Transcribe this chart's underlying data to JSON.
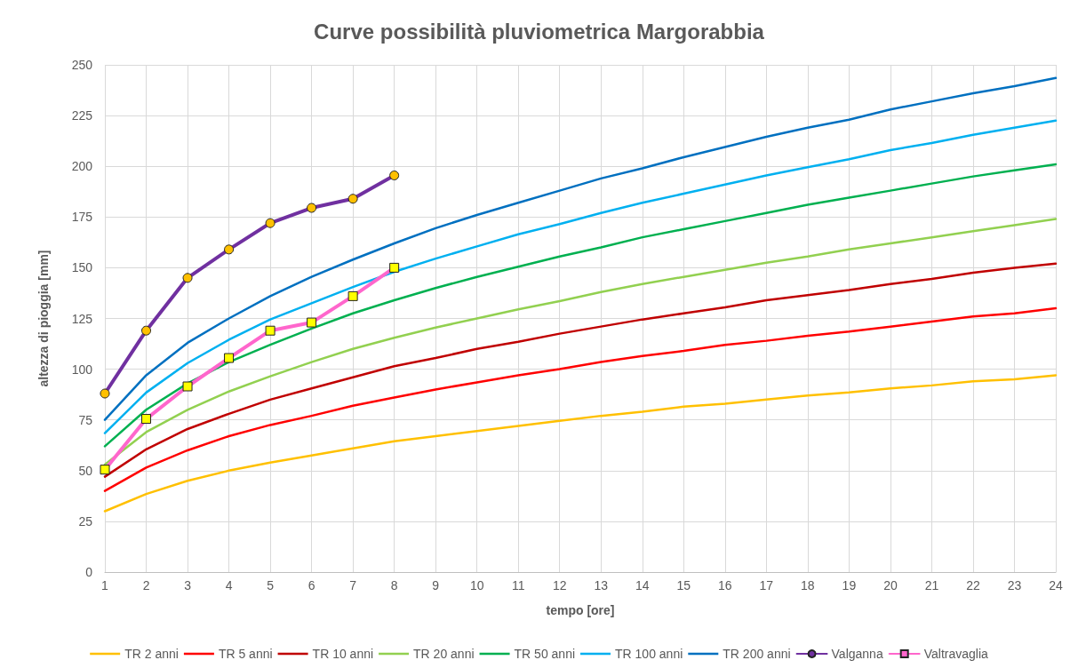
{
  "chart_data": {
    "type": "line",
    "title": "Curve possibilità pluviometrica Margorabbia",
    "xlabel": "tempo [ore]",
    "ylabel": "altezza di pioggia [mm]",
    "x": [
      1,
      2,
      3,
      4,
      5,
      6,
      7,
      8,
      9,
      10,
      11,
      12,
      13,
      14,
      15,
      16,
      17,
      18,
      19,
      20,
      21,
      22,
      23,
      24
    ],
    "xlim": [
      1,
      24
    ],
    "xticks": [
      1,
      2,
      3,
      4,
      5,
      6,
      7,
      8,
      9,
      10,
      11,
      12,
      13,
      14,
      15,
      16,
      17,
      18,
      19,
      20,
      21,
      22,
      23,
      24
    ],
    "ylim": [
      0,
      250
    ],
    "yticks": [
      0,
      25,
      50,
      75,
      100,
      125,
      150,
      175,
      200,
      225,
      250
    ],
    "grid": true,
    "legend": "bottom",
    "marker": "none",
    "line_style": "solid",
    "series": [
      {
        "name": "TR 2 anni",
        "color": "#ffc000",
        "values": [
          30,
          38.5,
          45,
          50,
          54,
          57.5,
          61,
          64.5,
          67,
          69.5,
          72,
          74.5,
          77,
          79,
          81.5,
          83,
          85,
          87,
          88.5,
          90.5,
          92,
          94,
          95,
          97
        ]
      },
      {
        "name": "TR 5 anni",
        "color": "#ff0000",
        "values": [
          40,
          51.5,
          60,
          67,
          72.5,
          77,
          82,
          86,
          90,
          93.5,
          97,
          100,
          103.5,
          106.5,
          109,
          112,
          114,
          116.5,
          118.5,
          121,
          123.5,
          126,
          127.5,
          130
        ]
      },
      {
        "name": "TR 10 anni",
        "color": "#c00000",
        "values": [
          47,
          60.5,
          70.5,
          78,
          85,
          90.5,
          96,
          101.5,
          105.5,
          110,
          113.5,
          117.5,
          121,
          124.5,
          127.5,
          130.5,
          134,
          136.5,
          139,
          142,
          144.5,
          147.5,
          150,
          152
        ]
      },
      {
        "name": "TR 20 anni",
        "color": "#92d050",
        "values": [
          53,
          69,
          80,
          89,
          96.5,
          103.5,
          110,
          115.5,
          120.5,
          125,
          129.5,
          133.5,
          138,
          142,
          145.5,
          149,
          152.5,
          155.5,
          159,
          162,
          165,
          168,
          171,
          174
        ]
      },
      {
        "name": "TR 50 anni",
        "color": "#00b050",
        "values": [
          62,
          80,
          93,
          103.5,
          112,
          120,
          127.5,
          134,
          140,
          145.5,
          150.5,
          155.5,
          160,
          165,
          169,
          173,
          177,
          181,
          184.5,
          188,
          191.5,
          195,
          198,
          201
        ]
      },
      {
        "name": "TR 100 anni",
        "color": "#00b0f0",
        "values": [
          68.5,
          88.5,
          103,
          114.5,
          124.5,
          132.5,
          140.5,
          148,
          154.5,
          160.5,
          166.5,
          171.5,
          177,
          182,
          186.5,
          191,
          195.5,
          199.5,
          203.5,
          208,
          211.5,
          215.5,
          219,
          222.5
        ]
      },
      {
        "name": "TR 200 anni",
        "color": "#0070c0",
        "values": [
          75,
          97,
          113,
          125,
          136,
          145.5,
          154,
          162,
          169.5,
          176,
          182,
          188,
          194,
          199,
          204.5,
          209.5,
          214.5,
          219,
          223,
          228,
          232,
          236,
          239.5,
          243.5
        ]
      },
      {
        "name": "Valganna",
        "color": "#7030a0",
        "x": [
          1,
          2,
          3,
          4,
          5,
          6,
          7,
          8
        ],
        "marker": "circle",
        "colors": [
          "#ffc000",
          "#ffc000",
          "#ffc000",
          "#ffc000",
          "#ffc000",
          "#ffc000",
          "#ffc000",
          "#ffc000"
        ],
        "values": [
          88,
          119,
          145,
          159,
          172,
          179.5,
          184,
          195.5
        ]
      },
      {
        "name": "Valtravaglia",
        "color": "#ff66cc",
        "x": [
          1,
          2,
          3,
          4,
          5,
          6,
          7,
          8
        ],
        "marker": "square",
        "colors": [
          "#ffff00",
          "#ffff00",
          "#ffff00",
          "#ffff00",
          "#ffff00",
          "#ffff00",
          "#ffff00",
          "#ffff00"
        ],
        "values": [
          50.5,
          75.5,
          91.5,
          105.5,
          119,
          123,
          136,
          150
        ]
      }
    ]
  }
}
